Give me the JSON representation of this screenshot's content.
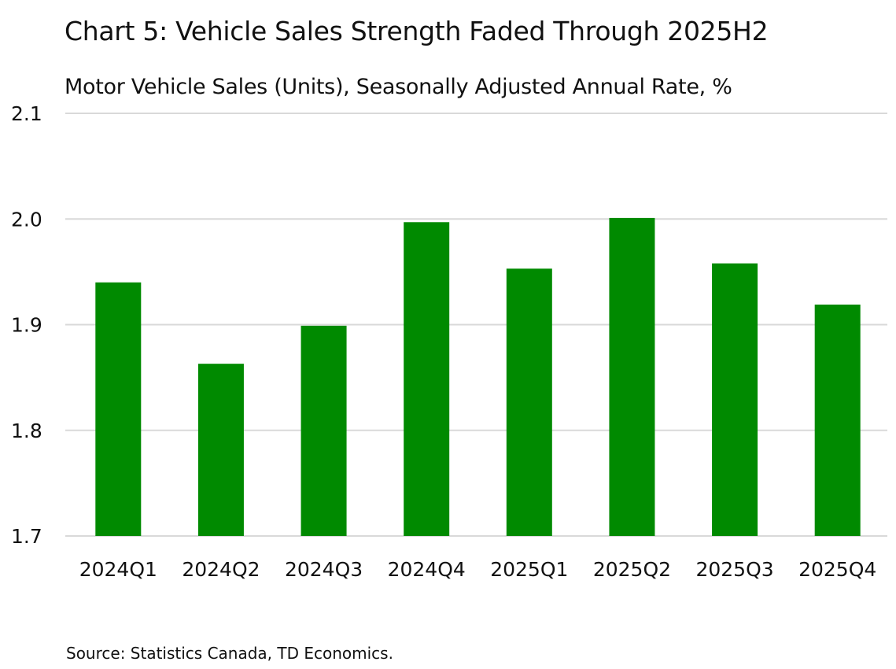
{
  "chart_data": {
    "type": "bar",
    "title": "Chart 5: Vehicle Sales Strength Faded Through 2025H2",
    "subtitle": "Motor Vehicle Sales (Units), Seasonally Adjusted Annual Rate, %",
    "source": "Source: Statistics Canada, TD Economics.",
    "xlabel": "",
    "ylabel": "",
    "categories": [
      "2024Q1",
      "2024Q2",
      "2024Q3",
      "2024Q4",
      "2025Q1",
      "2025Q2",
      "2025Q3",
      "2025Q4"
    ],
    "values": [
      1.94,
      1.863,
      1.899,
      1.997,
      1.953,
      2.001,
      1.958,
      1.919
    ],
    "ylim": [
      1.7,
      2.1
    ],
    "yticks": [
      "1.7",
      "1.8",
      "1.9",
      "2.0",
      "2.1"
    ],
    "grid": true,
    "legend": "none",
    "colors": {
      "bar": "#008a00",
      "grid": "#d9d9d9"
    }
  }
}
